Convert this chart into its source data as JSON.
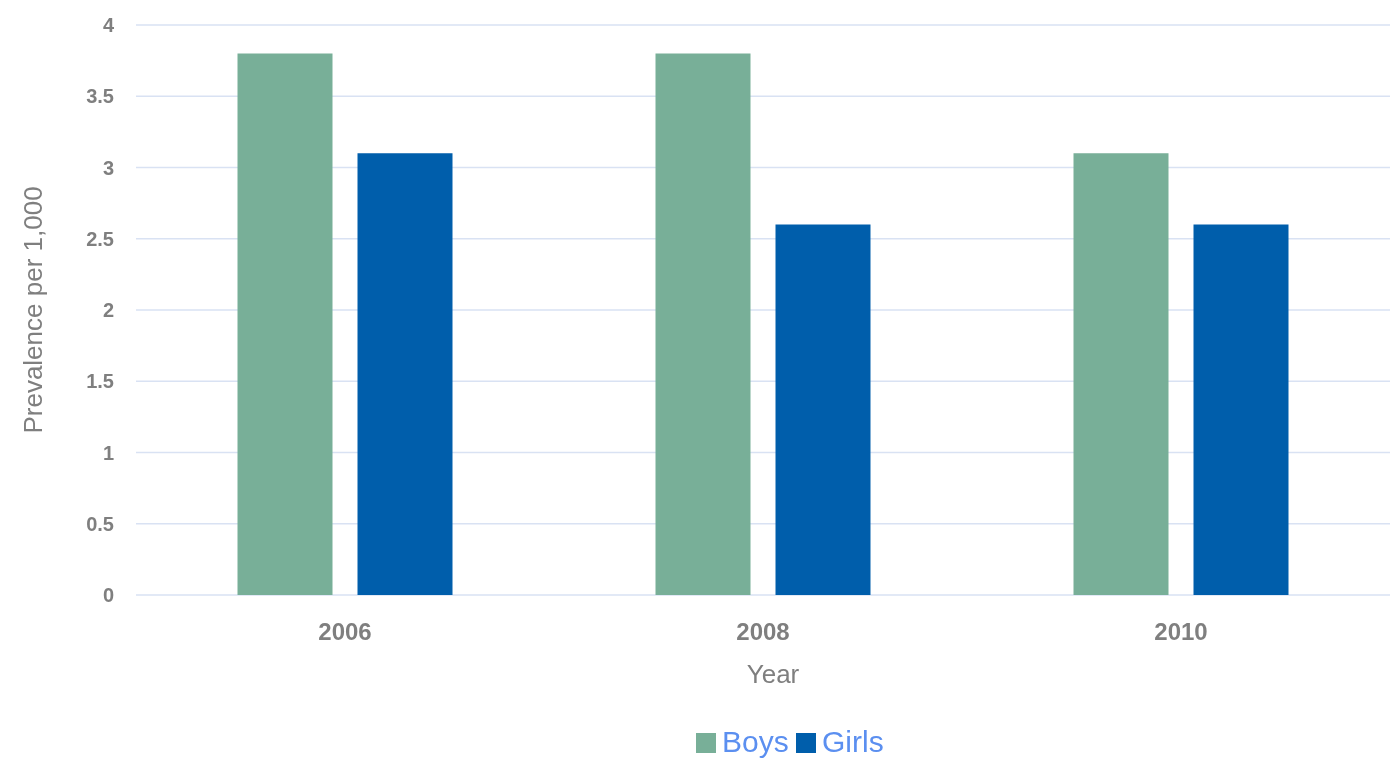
{
  "chart_data": {
    "type": "bar",
    "xlabel": "Year",
    "ylabel": "Prevalence per 1,000",
    "categories": [
      "2006",
      "2008",
      "2010"
    ],
    "series": [
      {
        "name": "Boys",
        "color": "#78af98",
        "values": [
          3.8,
          3.8,
          3.1
        ]
      },
      {
        "name": "Girls",
        "color": "#005eab",
        "values": [
          3.1,
          2.6,
          2.6
        ]
      }
    ],
    "ylim": [
      0,
      4
    ],
    "yticks": [
      0,
      0.5,
      1,
      1.5,
      2,
      2.5,
      3,
      3.5,
      4
    ],
    "grid": "y",
    "legend": "bottom"
  }
}
